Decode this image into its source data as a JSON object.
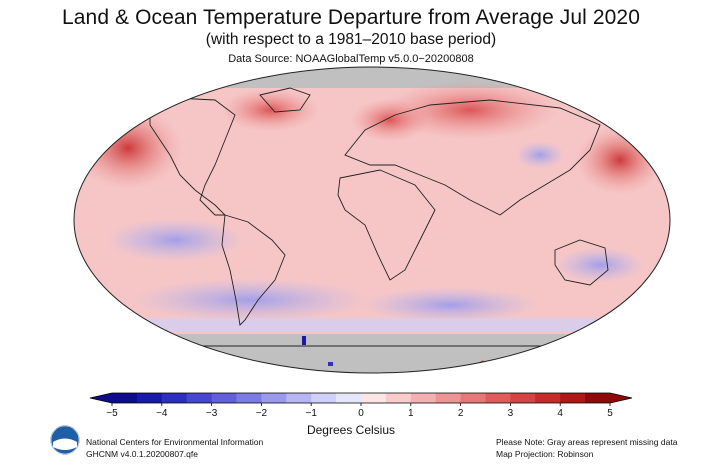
{
  "header": {
    "title": "Land & Ocean Temperature Departure from Average Jul 2020",
    "subtitle": "(with respect to a 1981–2010 base period)",
    "source": "Data Source: NOAAGlobalTemp v5.0.0−20200808"
  },
  "map": {
    "projection_word": "Robinson",
    "missing_color": "#c0c0c0",
    "regions_warm_strong": [
      "north-pacific",
      "siberia",
      "eastern-europe",
      "arctic-canada",
      "north-atlantic"
    ],
    "regions_cool": [
      "southern-ocean",
      "eastern-tropical-pacific",
      "west-antarctica-coast",
      "east-asia"
    ],
    "regions_missing": [
      "antarctica",
      "arctic-sea-ice"
    ]
  },
  "colorbar": {
    "ticks": [
      "−5",
      "−4",
      "−3",
      "−2",
      "−1",
      "0",
      "1",
      "2",
      "3",
      "4",
      "5"
    ],
    "label": "Degrees Celsius",
    "colors": [
      "#0d0d8c",
      "#1a1aaa",
      "#2e2ec2",
      "#4646d0",
      "#6060dc",
      "#7b7be4",
      "#9a9aec",
      "#b6b6f2",
      "#d0d0f8",
      "#e6e6fb",
      "#fbe4e4",
      "#f8cccc",
      "#f3b0b0",
      "#ee9494",
      "#e87878",
      "#e05c5c",
      "#d74242",
      "#c82a2a",
      "#b01818",
      "#8e0a0a"
    ]
  },
  "footer": {
    "org_line1": "National Centers for Environmental Information",
    "org_line2": "GHCNM v4.0.1.20200807.qfe",
    "note_line1": "Please Note: Gray areas represent missing data",
    "note_line2": "Map Projection: Robinson"
  }
}
